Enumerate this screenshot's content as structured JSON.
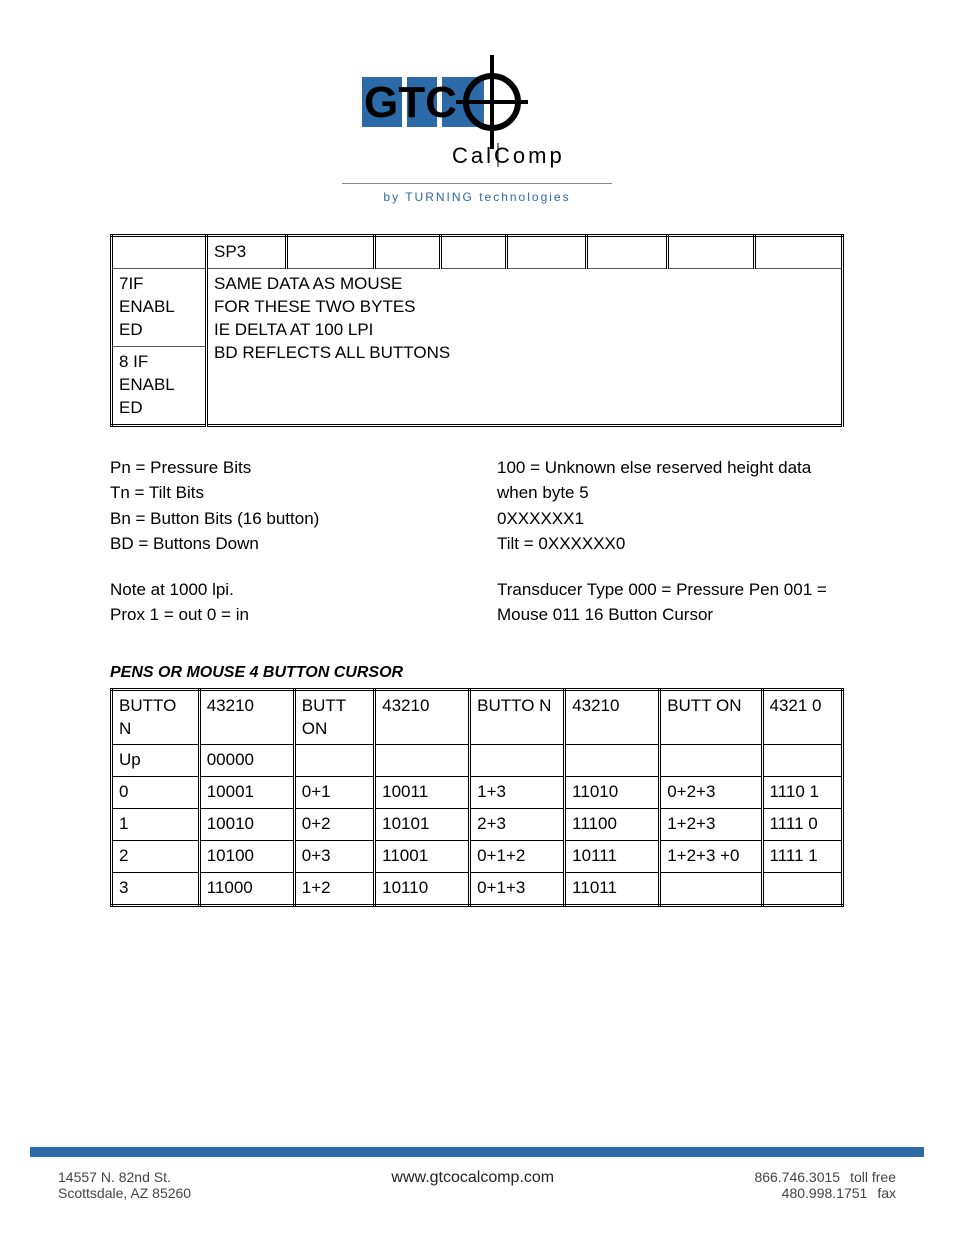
{
  "logo": {
    "brand_main": "GTC",
    "brand_sub": "C a l C o m p",
    "byline": "by  TURNING  technologies",
    "colors": {
      "blue": "#2d6aa8",
      "black": "#000000"
    }
  },
  "table1": {
    "col_widths_pct": [
      13,
      11,
      12,
      9,
      9,
      11,
      11,
      12,
      12
    ],
    "rows": [
      {
        "cells": [
          "",
          "SP3",
          "",
          "",
          "",
          "",
          "",
          "",
          ""
        ]
      },
      {
        "cells": [
          "7IF ENABL ED",
          "SAME DATA AS MOUSE FOR THESE TWO BYTES IE DELTA AT 100 LPI BD REFLECTS ALL BUTTONS"
        ],
        "colspan_2nd": 8,
        "rowspan_2nd": 2
      },
      {
        "cells": [
          "8 IF ENABL ED"
        ]
      }
    ]
  },
  "notes": {
    "left": {
      "lines1": [
        "Pn = Pressure Bits",
        "Tn = Tilt Bits",
        "Bn = Button Bits (16 button)",
        "BD = Buttons Down"
      ],
      "lines2": [
        "Note at 1000 lpi.",
        "Prox 1 = out 0 = in"
      ]
    },
    "right": {
      "lines1": [
        "100 = Unknown else reserved height data when byte 5",
        "0XXXXXX1",
        "Tilt = 0XXXXXX0"
      ],
      "lines2": [
        "Transducer Type 000 = Pressure Pen 001 = Mouse 011 16 Button Cursor"
      ]
    }
  },
  "section_heading": "PENS OR MOUSE 4 BUTTON CURSOR",
  "table2": {
    "col_widths_pct": [
      12,
      13,
      11,
      13,
      13,
      13,
      14,
      11
    ],
    "rows": [
      [
        "BUTTO N",
        "43210",
        "BUTT ON",
        "43210",
        "BUTTO N",
        "43210",
        "BUTT ON",
        "4321 0"
      ],
      [
        "Up",
        "00000",
        "",
        "",
        "",
        "",
        "",
        ""
      ],
      [
        "0",
        "10001",
        "0+1",
        "10011",
        "1+3",
        "11010",
        "0+2+3",
        "1110 1"
      ],
      [
        "1",
        "10010",
        "0+2",
        "10101",
        "2+3",
        "11100",
        "1+2+3",
        "1111 0"
      ],
      [
        "2",
        "10100",
        "0+3",
        "11001",
        "0+1+2",
        "10111",
        "1+2+3 +0",
        "1111 1"
      ],
      [
        "3",
        "11000",
        "1+2",
        "10110",
        "0+1+3",
        "11011",
        "",
        ""
      ]
    ]
  },
  "footer": {
    "address_line1": "14557 N. 82nd St.",
    "address_line2": "Scottsdale, AZ 85260",
    "website": "www.gtcocalcomp.com",
    "phone1": "866.746.3015",
    "phone1_label": "toll free",
    "phone2": "480.998.1751",
    "phone2_label": "fax"
  }
}
